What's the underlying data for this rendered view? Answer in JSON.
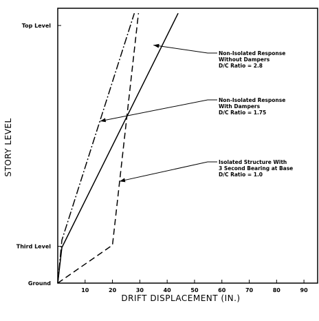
{
  "chart_data": {
    "type": "line",
    "title": "",
    "xlabel": "DRIFT DISPLACEMENT (IN.)",
    "ylabel": "STORY LEVEL",
    "xlim": [
      0,
      95
    ],
    "x_ticks": [
      10,
      20,
      30,
      40,
      50,
      60,
      70,
      80,
      90
    ],
    "x_tick_labels": [
      "10",
      "20",
      "30",
      "40",
      "50",
      "60",
      "70",
      "80",
      "90"
    ],
    "y_levels": [
      "Ground",
      "Third Level",
      "Top Level"
    ],
    "y_level_values": [
      0,
      3,
      21
    ],
    "series": [
      {
        "style": "solid",
        "points": [
          [
            0,
            0
          ],
          [
            1.5,
            2.9
          ],
          [
            44,
            22
          ]
        ]
      },
      {
        "style": "dash-dot",
        "points": [
          [
            0,
            0
          ],
          [
            1.5,
            3.5
          ],
          [
            28,
            22
          ]
        ]
      },
      {
        "style": "dashed",
        "points": [
          [
            0,
            0
          ],
          [
            20,
            3.1
          ],
          [
            29.5,
            22
          ]
        ]
      }
    ],
    "annotations": [
      {
        "lines": [
          "Non-Isolated Response",
          "Without Dampers",
          "D/C Ratio = 2.8"
        ],
        "target": [
          35,
          19.4
        ]
      },
      {
        "lines": [
          "Non-Isolated Response",
          "With Dampers",
          "D/C Ratio = 1.75"
        ],
        "target": [
          15.5,
          13.2
        ]
      },
      {
        "lines": [
          "Isolated Structure With",
          "3 Second Bearing at Base",
          "D/C Ratio = 1.0"
        ],
        "target": [
          22.6,
          8.3
        ]
      }
    ],
    "grid": false,
    "legend": "none",
    "line_color": "#000000"
  }
}
